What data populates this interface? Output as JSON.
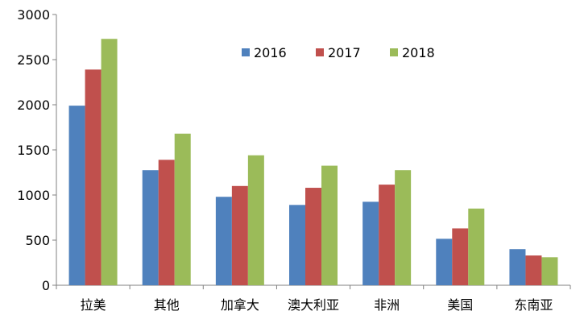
{
  "chart_data": {
    "type": "bar",
    "title": "",
    "xlabel": "",
    "ylabel": "",
    "categories": [
      "拉美",
      "其他",
      "加拿大",
      "澳大利亚",
      "非洲",
      "美国",
      "东南亚"
    ],
    "series": [
      {
        "name": "2016",
        "color": "#4F81BD",
        "values": [
          1990,
          1275,
          980,
          890,
          925,
          515,
          400
        ]
      },
      {
        "name": "2017",
        "color": "#C0504D",
        "values": [
          2390,
          1390,
          1100,
          1080,
          1115,
          630,
          330
        ]
      },
      {
        "name": "2018",
        "color": "#9BBB59",
        "values": [
          2730,
          1680,
          1440,
          1325,
          1275,
          850,
          310
        ]
      }
    ],
    "ylim": [
      0,
      3000
    ],
    "yticks": [
      "0",
      "500",
      "1000",
      "1500",
      "2000",
      "2500",
      "3000"
    ],
    "grid": false,
    "legend_position": "top-right"
  }
}
